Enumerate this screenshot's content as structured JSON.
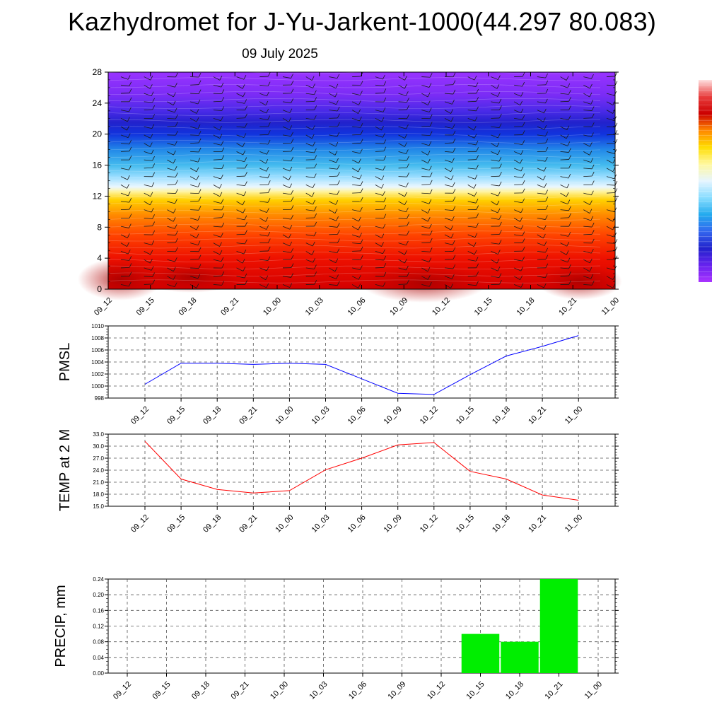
{
  "header": {
    "title": "Kazhydromet for J-Yu-Jarkent-1000(44.297 80.083)",
    "date": "09 July 2025"
  },
  "colors": {
    "pmsl_line": "#0000ff",
    "temp_line": "#ff0000",
    "precip_bar": "#00ee00",
    "colorbar_stops": [
      "#ffe0e0",
      "#e83c3c",
      "#cc0000",
      "#ff8800",
      "#ffdd00",
      "#fff8a0",
      "#e6f5ff",
      "#88ddff",
      "#22aaee",
      "#3366ee",
      "#2222cc",
      "#6622ee",
      "#aa33ff"
    ]
  },
  "chart_data": [
    {
      "id": "vertical_section",
      "type": "heatmap",
      "description_of_variable": "temperature shading with wind barbs",
      "y_ticks": [
        0,
        4,
        8,
        12,
        16,
        20,
        24,
        28
      ],
      "ylim": [
        0,
        28
      ],
      "x_ticks": [
        "09_12",
        "09_15",
        "09_18",
        "09_21",
        "10_00",
        "10_03",
        "10_06",
        "10_09",
        "10_12",
        "10_15",
        "10_18",
        "10_21",
        "11_00"
      ],
      "barbs": true,
      "colorbar": true
    },
    {
      "id": "pmsl",
      "type": "line",
      "ylabel": "PMSL",
      "x": [
        "09_12",
        "09_15",
        "09_18",
        "09_21",
        "10_00",
        "10_03",
        "10_06",
        "10_09",
        "10_12",
        "10_15",
        "10_18",
        "10_21",
        "11_00"
      ],
      "y": [
        1000.3,
        1003.8,
        1003.8,
        1003.6,
        1003.8,
        1003.6,
        1001.2,
        998.8,
        998.6,
        1001.9,
        1005.0,
        1006.6,
        1008.4
      ],
      "ylim": [
        998,
        1010
      ],
      "y_ticks": [
        "998",
        "1000",
        "1002",
        "1004",
        "1006",
        "1008",
        "1010"
      ],
      "grid": true
    },
    {
      "id": "temp2m",
      "type": "line",
      "ylabel": "TEMP at 2 M",
      "x": [
        "09_12",
        "09_15",
        "09_18",
        "09_21",
        "10_00",
        "10_03",
        "10_06",
        "10_09",
        "10_12",
        "10_15",
        "10_18",
        "10_21",
        "11_00"
      ],
      "y": [
        31.2,
        21.8,
        19.2,
        18.3,
        18.9,
        24.1,
        27.0,
        30.3,
        30.9,
        23.7,
        21.8,
        17.8,
        16.5
      ],
      "ylim": [
        15,
        33
      ],
      "y_ticks": [
        "15.0",
        "18.0",
        "21.0",
        "24.0",
        "27.0",
        "30.0",
        "33.0"
      ],
      "grid": true
    },
    {
      "id": "precip",
      "type": "bar",
      "ylabel": "PRECIP, mm",
      "categories": [
        "09_12",
        "09_15",
        "09_18",
        "09_21",
        "10_00",
        "10_03",
        "10_06",
        "10_09",
        "10_12",
        "10_15",
        "10_18",
        "10_21",
        "11_00"
      ],
      "values": [
        0,
        0,
        0,
        0,
        0,
        0,
        0,
        0,
        0,
        0.1,
        0.08,
        0.24,
        0
      ],
      "ylim": [
        0,
        0.24
      ],
      "y_ticks": [
        "0.00",
        "0.04",
        "0.08",
        "0.12",
        "0.16",
        "0.20",
        "0.24"
      ],
      "grid": true
    }
  ]
}
